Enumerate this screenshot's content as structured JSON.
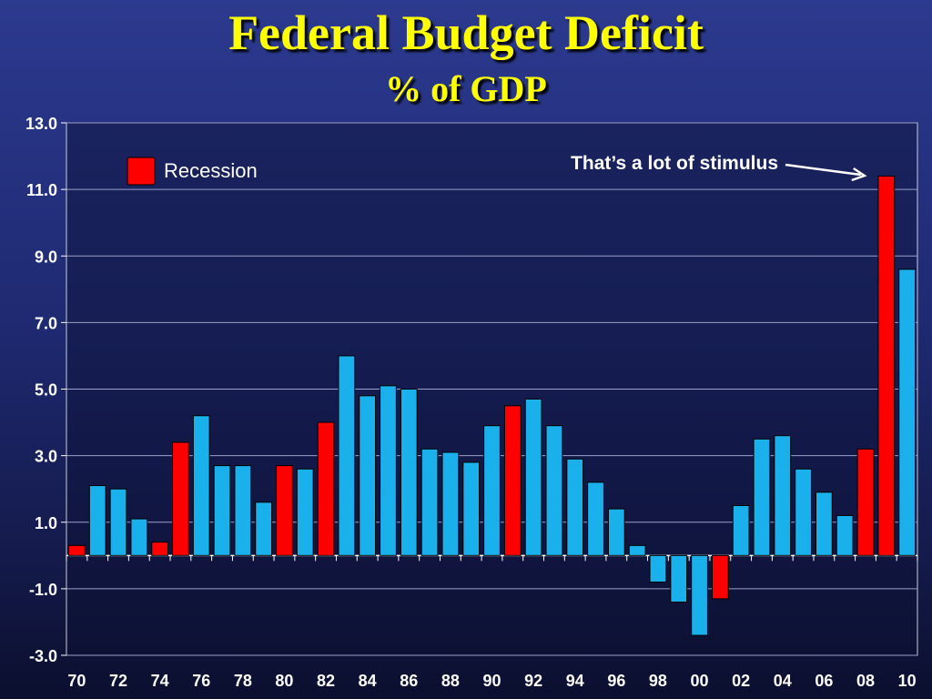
{
  "title": "Federal Budget Deficit",
  "subtitle": "% of GDP",
  "colors": {
    "normal": "#1ab0ec",
    "recession": "#ff0000",
    "title": "#ffff00",
    "grid": "#9aa0c8",
    "plot_bg": "#0c1030"
  },
  "chart_data": {
    "type": "bar",
    "x": [
      1970,
      1971,
      1972,
      1973,
      1974,
      1975,
      1976,
      1977,
      1978,
      1979,
      1980,
      1981,
      1982,
      1983,
      1984,
      1985,
      1986,
      1987,
      1988,
      1989,
      1990,
      1991,
      1992,
      1993,
      1994,
      1995,
      1996,
      1997,
      1998,
      1999,
      2000,
      2001,
      2002,
      2003,
      2004,
      2005,
      2006,
      2007,
      2008,
      2009,
      2010
    ],
    "values": [
      0.3,
      2.1,
      2.0,
      1.1,
      0.4,
      3.4,
      4.2,
      2.7,
      2.7,
      1.6,
      2.7,
      2.6,
      4.0,
      6.0,
      4.8,
      5.1,
      5.0,
      3.2,
      3.1,
      2.8,
      3.9,
      4.5,
      4.7,
      3.9,
      2.9,
      2.2,
      1.4,
      0.3,
      -0.8,
      -1.4,
      -2.4,
      -1.3,
      1.5,
      3.5,
      3.6,
      2.6,
      1.9,
      1.2,
      3.2,
      11.4,
      8.6
    ],
    "recession": [
      true,
      false,
      false,
      false,
      true,
      true,
      false,
      false,
      false,
      false,
      true,
      false,
      true,
      false,
      false,
      false,
      false,
      false,
      false,
      false,
      false,
      true,
      false,
      false,
      false,
      false,
      false,
      false,
      false,
      false,
      false,
      true,
      false,
      false,
      false,
      false,
      false,
      false,
      true,
      true,
      false
    ],
    "xtick_labels": [
      "70",
      "72",
      "74",
      "76",
      "78",
      "80",
      "82",
      "84",
      "86",
      "88",
      "90",
      "92",
      "94",
      "96",
      "98",
      "00",
      "02",
      "04",
      "06",
      "08",
      "10"
    ],
    "yticks": [
      "13.0",
      "11.0",
      "9.0",
      "7.0",
      "5.0",
      "3.0",
      "1.0",
      "-1.0",
      "-3.0"
    ],
    "ylim": [
      -3,
      13
    ],
    "grid": true,
    "xlabel": "",
    "ylabel": "",
    "legend": [
      {
        "name": "Recession",
        "color": "#ff0000"
      }
    ],
    "legend_position": "top-left",
    "annotation": {
      "text": "That’s a lot of stimulus",
      "target_x": 2009
    }
  }
}
